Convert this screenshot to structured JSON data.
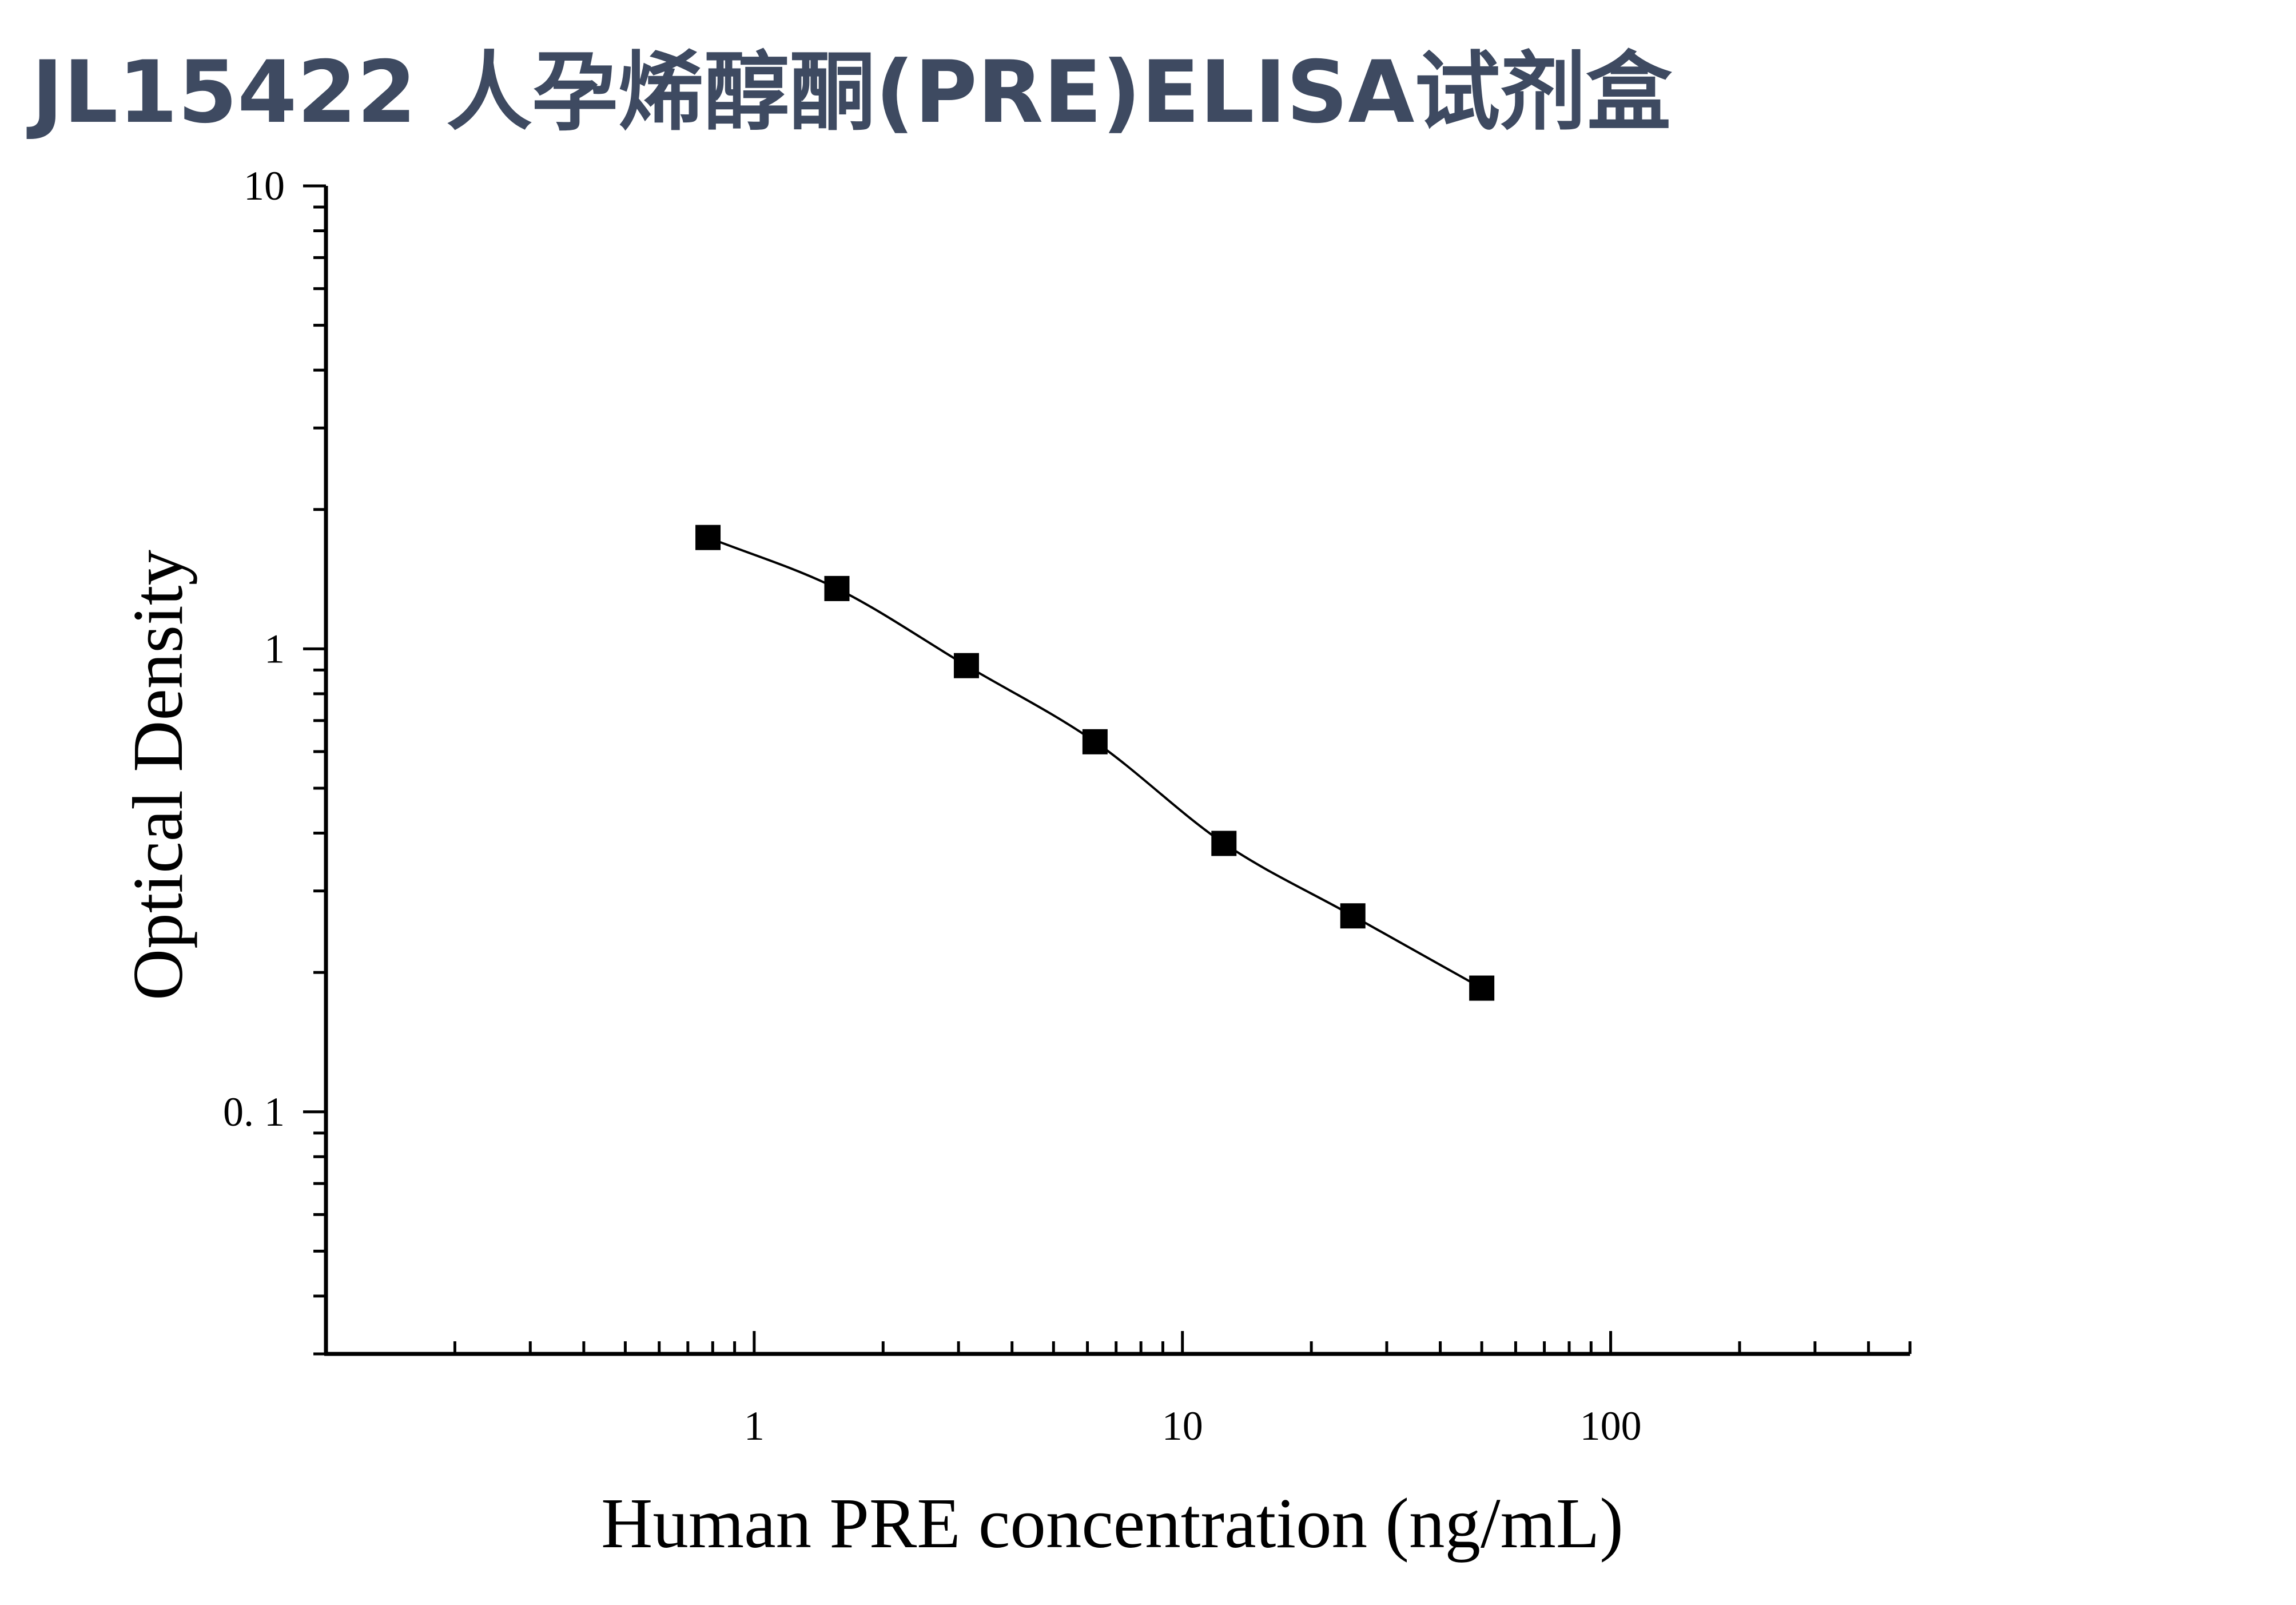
{
  "title": "JL15422 人孕烯醇酮(PRE)ELISA试剂盒",
  "chart_data": {
    "type": "scatter",
    "title": "JL15422 人孕烯醇酮(PRE)ELISA试剂盒",
    "xlabel": "Human PRE concentration (ng/mL)",
    "ylabel": "Optical Density",
    "x_scale": "log",
    "y_scale": "log",
    "xlim": [
      0.1,
      500
    ],
    "ylim": [
      0.03,
      10
    ],
    "x_ticks": [
      {
        "value": 1,
        "label": "1"
      },
      {
        "value": 10,
        "label": "10"
      },
      {
        "value": 100,
        "label": "100"
      }
    ],
    "y_ticks": [
      {
        "value": 0.1,
        "label": "0. 1"
      },
      {
        "value": 1,
        "label": "1"
      },
      {
        "value": 10,
        "label": "10"
      }
    ],
    "grid": false,
    "marker": "square",
    "fit_curve": true,
    "colors": {
      "marker": "#000000",
      "curve": "#000000",
      "axis": "#000000",
      "title": "#3e4a61"
    },
    "series": [
      {
        "x": [
          0.78,
          1.56,
          3.13,
          6.25,
          12.5,
          25,
          50
        ],
        "y": [
          1.74,
          1.35,
          0.92,
          0.63,
          0.38,
          0.265,
          0.185
        ]
      }
    ]
  }
}
